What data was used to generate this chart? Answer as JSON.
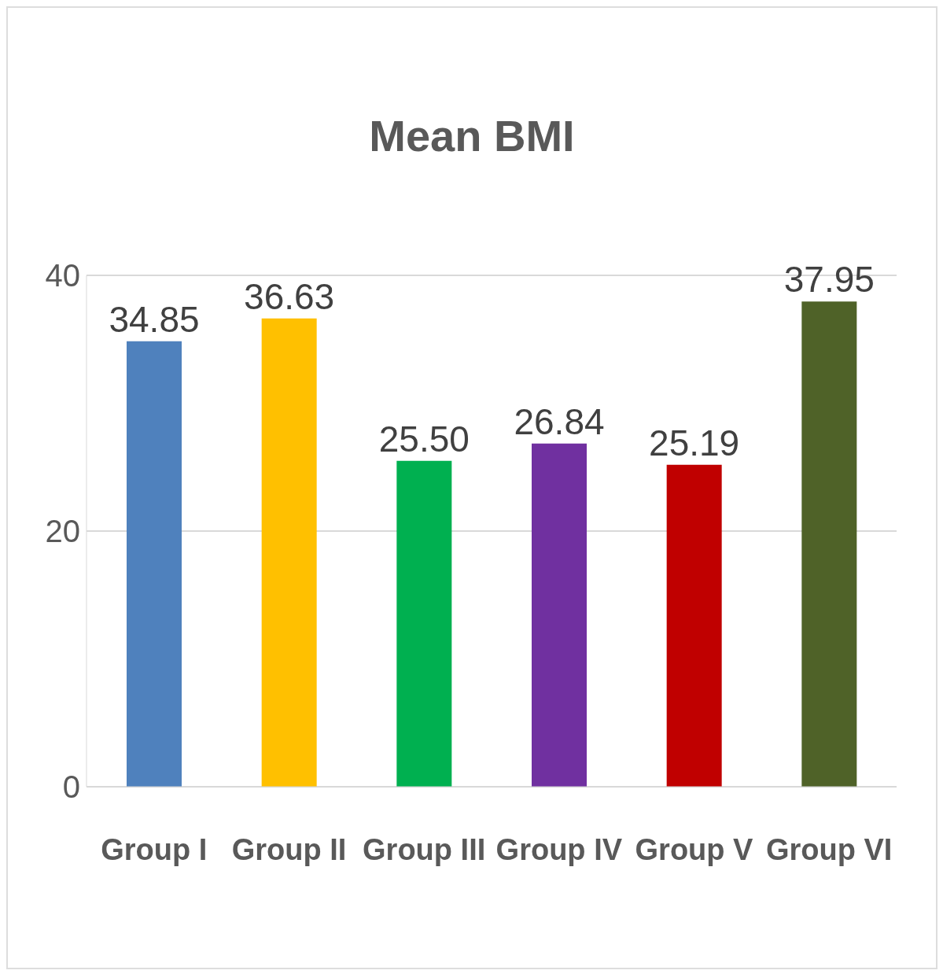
{
  "chart_data": {
    "type": "bar",
    "title": "Mean BMI",
    "categories": [
      "Group I",
      "Group II",
      "Group III",
      "Group IV",
      "Group V",
      "Group VI"
    ],
    "values": [
      34.85,
      36.63,
      25.5,
      26.84,
      25.19,
      37.95
    ],
    "colors": [
      "#4f81bd",
      "#ffc000",
      "#00b050",
      "#7030a0",
      "#c00000",
      "#4f6228"
    ],
    "value_labels": [
      "34.85",
      "36.63",
      "25.50",
      "26.84",
      "25.19",
      "37.95"
    ],
    "ylim": [
      0,
      40
    ],
    "yticks": [
      0,
      20,
      40
    ],
    "grid": "y"
  }
}
